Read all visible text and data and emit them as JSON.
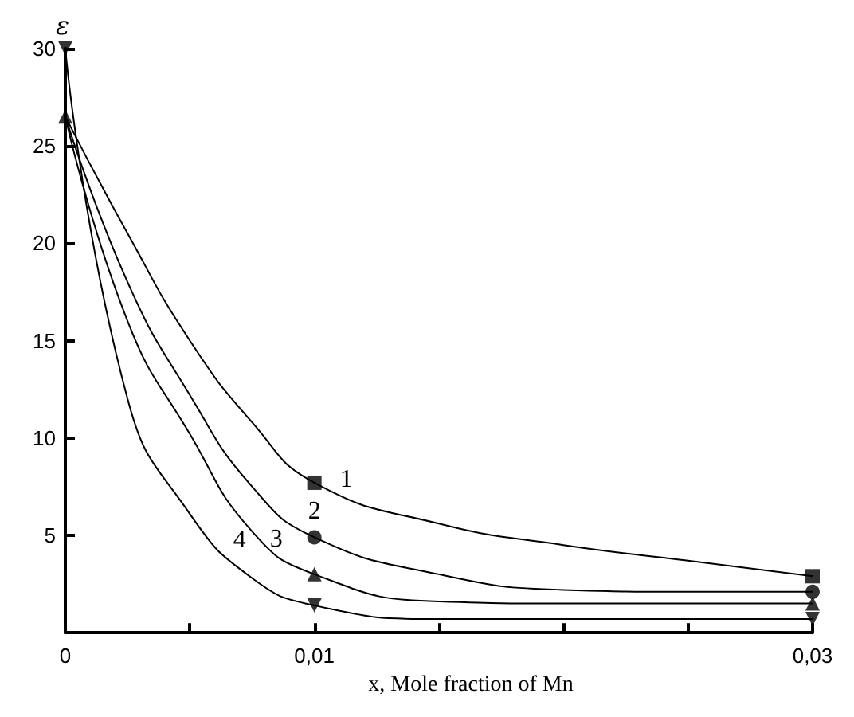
{
  "chart_data": {
    "type": "scatter",
    "xlabel": "x, Mole fraction of Mn",
    "ylabel": "ε",
    "xlim": [
      0,
      0.03
    ],
    "ylim": [
      0,
      30
    ],
    "xticks": [
      {
        "value": 0,
        "label": "0"
      },
      {
        "value": 0.005,
        "label": null
      },
      {
        "value": 0.01,
        "label": "0,01"
      },
      {
        "value": 0.015,
        "label": null
      },
      {
        "value": 0.02,
        "label": null
      },
      {
        "value": 0.025,
        "label": null
      },
      {
        "value": 0.03,
        "label": "0,03"
      }
    ],
    "yticks": [
      5,
      10,
      15,
      20,
      25,
      30
    ],
    "grid": false,
    "legend": false,
    "series": [
      {
        "marker": "square",
        "color": "#000000",
        "x": [
          0.01,
          0.03
        ],
        "values": [
          7.7,
          2.9
        ]
      },
      {
        "marker": "circle",
        "color": "#000000",
        "x": [
          0.01,
          0.03
        ],
        "values": [
          4.9,
          2.1
        ]
      },
      {
        "marker": "triangle",
        "color": "#000000",
        "x": [
          0,
          0.01,
          0.03
        ],
        "values": [
          26.5,
          3.0,
          1.5
        ]
      },
      {
        "marker": "triangle-down",
        "color": "#000000",
        "x": [
          0,
          0.01,
          0.03
        ],
        "values": [
          30,
          1.4,
          0.7
        ]
      },
      {
        "type": "line",
        "marker": "none",
        "line_style": "solid",
        "color": "#000000",
        "x": [
          0,
          0.0025,
          0.005,
          0.0075,
          0.01,
          0.015,
          0.02,
          0.025,
          0.03
        ],
        "values": [
          26.5,
          20.5,
          15,
          10.8,
          7.7,
          5.6,
          4.5,
          3.7,
          2.9
        ],
        "name": "1"
      },
      {
        "type": "line",
        "marker": "none",
        "line_style": "solid",
        "color": "#000000",
        "x": [
          0,
          0.0025,
          0.005,
          0.0075,
          0.01,
          0.015,
          0.02,
          0.025,
          0.03
        ],
        "values": [
          26.5,
          18,
          12.2,
          7.5,
          4.9,
          3.0,
          2.2,
          2.1,
          2.1
        ],
        "name": "2"
      },
      {
        "type": "line",
        "marker": "none",
        "line_style": "solid",
        "color": "#000000",
        "x": [
          0,
          0.0025,
          0.005,
          0.0075,
          0.01,
          0.015,
          0.02,
          0.025,
          0.03
        ],
        "values": [
          26.5,
          16,
          10.2,
          5.2,
          3.0,
          1.6,
          1.5,
          1.5,
          1.5
        ],
        "name": "3"
      },
      {
        "type": "line",
        "marker": "none",
        "line_style": "solid",
        "color": "#000000",
        "x": [
          0,
          0.0025,
          0.005,
          0.0075,
          0.01,
          0.015,
          0.02,
          0.025,
          0.03
        ],
        "values": [
          30,
          12,
          6.1,
          2.8,
          1.4,
          0.7,
          0.7,
          0.7,
          0.7
        ],
        "name": "4"
      }
    ]
  }
}
